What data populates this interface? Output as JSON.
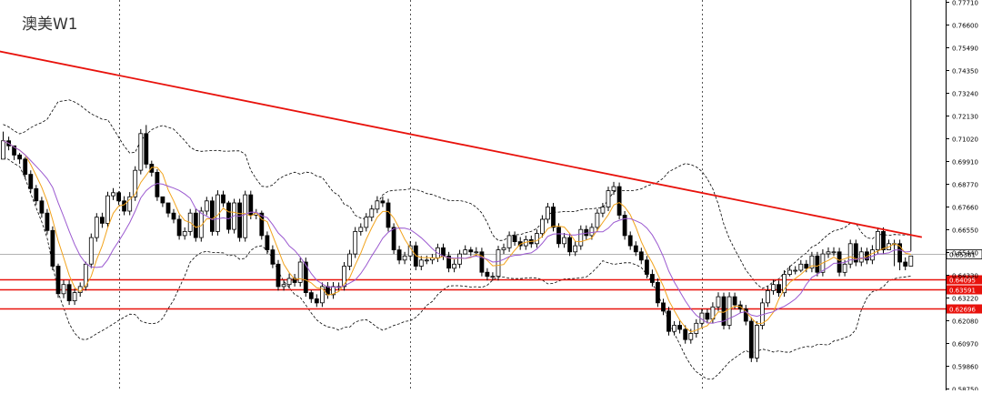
{
  "chart_data": {
    "type": "candlestick",
    "title": "澳美W1",
    "y_axis": {
      "position": "right",
      "ticks": [
        "0.77710",
        "0.76600",
        "0.75490",
        "0.74350",
        "0.73240",
        "0.72130",
        "0.71020",
        "0.69910",
        "0.68770",
        "0.67660",
        "0.66550",
        "0.65440",
        "0.64330",
        "0.63220",
        "0.62080",
        "0.60970",
        "0.59860",
        "0.58750"
      ],
      "tick_values": [
        0.7771,
        0.766,
        0.7549,
        0.7435,
        0.7324,
        0.7213,
        0.7102,
        0.6991,
        0.6877,
        0.6766,
        0.6655,
        0.6544,
        0.6433,
        0.6322,
        0.6208,
        0.6097,
        0.5986,
        0.5875
      ],
      "ylim": [
        0.5875,
        0.7771
      ]
    },
    "current_price": {
      "label": "0.65361",
      "value": 0.65361,
      "color": "#999999"
    },
    "horizontal_levels": [
      {
        "label": "0.64095",
        "value": 0.64095,
        "color": "#e8120c"
      },
      {
        "label": "0.63591",
        "value": 0.63591,
        "color": "#e8120c"
      },
      {
        "label": "0.62696",
        "value": 0.62696,
        "color": "#e8120c"
      }
    ],
    "trendline": {
      "color": "#e8120c",
      "from_bar": 0,
      "from_value": 0.7528,
      "to_bar": 167,
      "to_value": 0.6617
    },
    "period_separators_at_bar": [
      21,
      74,
      127
    ],
    "candles": {
      "start": 0.7,
      "closes": [
        0.709,
        0.7065,
        0.702,
        0.7,
        0.6925,
        0.6855,
        0.6795,
        0.6735,
        0.665,
        0.6475,
        0.634,
        0.6385,
        0.6305,
        0.6345,
        0.6375,
        0.6485,
        0.6615,
        0.6715,
        0.6685,
        0.682,
        0.6835,
        0.6795,
        0.6745,
        0.6815,
        0.6945,
        0.7125,
        0.6975,
        0.6935,
        0.6815,
        0.6785,
        0.6735,
        0.6705,
        0.6625,
        0.6645,
        0.6735,
        0.6615,
        0.6745,
        0.6795,
        0.6645,
        0.6825,
        0.6785,
        0.6655,
        0.6785,
        0.6615,
        0.6825,
        0.6725,
        0.6735,
        0.6625,
        0.6555,
        0.6485,
        0.6375,
        0.6385,
        0.6415,
        0.6395,
        0.6495,
        0.6345,
        0.6315,
        0.6295,
        0.6375,
        0.6335,
        0.6375,
        0.6375,
        0.6475,
        0.6535,
        0.6645,
        0.6665,
        0.6715,
        0.6755,
        0.6795,
        0.6785,
        0.6665,
        0.6555,
        0.6505,
        0.6525,
        0.6575,
        0.6475,
        0.6505,
        0.6505,
        0.6515,
        0.6565,
        0.6525,
        0.6465,
        0.6485,
        0.6535,
        0.6555,
        0.6545,
        0.6545,
        0.6445,
        0.6425,
        0.6425,
        0.6555,
        0.6565,
        0.6625,
        0.6595,
        0.6575,
        0.6605,
        0.6585,
        0.6635,
        0.6705,
        0.6765,
        0.6665,
        0.6585,
        0.6615,
        0.6545,
        0.6575,
        0.6655,
        0.6625,
        0.6665,
        0.6735,
        0.6765,
        0.6845,
        0.6865,
        0.6725,
        0.6625,
        0.6575,
        0.6545,
        0.6505,
        0.6435,
        0.6395,
        0.6295,
        0.6255,
        0.6155,
        0.6185,
        0.6165,
        0.6115,
        0.6145,
        0.6195,
        0.6245,
        0.6215,
        0.6275,
        0.6325,
        0.6185,
        0.6325,
        0.6285,
        0.6265,
        0.6205,
        0.6025,
        0.6185,
        0.6295,
        0.6355,
        0.6385,
        0.6345,
        0.6435,
        0.6455,
        0.6455,
        0.6485,
        0.6465,
        0.6525,
        0.6445,
        0.6535,
        0.6545,
        0.6545,
        0.6445,
        0.6485,
        0.6585,
        0.6495,
        0.6545,
        0.6505,
        0.6555,
        0.6645,
        0.6555,
        0.6585,
        0.6585,
        0.6495,
        0.6475,
        0.6525
      ],
      "highs": [
        0.7135,
        0.711,
        0.7063,
        0.703,
        0.701,
        0.6945,
        0.6873,
        0.6815,
        0.6755,
        0.667,
        0.6487,
        0.6407,
        0.6405,
        0.6365,
        0.6395,
        0.6497,
        0.6635,
        0.6735,
        0.6737,
        0.684,
        0.6858,
        0.6842,
        0.6818,
        0.6838,
        0.6965,
        0.7147,
        0.7167,
        0.6992,
        0.695,
        0.6805,
        0.6765,
        0.6755,
        0.6725,
        0.6665,
        0.6755,
        0.6757,
        0.6765,
        0.6815,
        0.6815,
        0.6847,
        0.6845,
        0.6795,
        0.6805,
        0.6805,
        0.6845,
        0.6845,
        0.6755,
        0.6747,
        0.6645,
        0.6577,
        0.6505,
        0.6408,
        0.6439,
        0.6437,
        0.6515,
        0.6517,
        0.6357,
        0.6337,
        0.6395,
        0.6397,
        0.6397,
        0.6395,
        0.6495,
        0.6555,
        0.6667,
        0.6685,
        0.6735,
        0.6775,
        0.6818,
        0.6817,
        0.6805,
        0.6685,
        0.6575,
        0.6545,
        0.6598,
        0.6595,
        0.6525,
        0.6527,
        0.6535,
        0.6585,
        0.6585,
        0.6545,
        0.6508,
        0.6555,
        0.6577,
        0.6569,
        0.6568,
        0.6565,
        0.6465,
        0.6445,
        0.6575,
        0.6585,
        0.6645,
        0.6645,
        0.6618,
        0.6625,
        0.6625,
        0.6655,
        0.6725,
        0.6785,
        0.6785,
        0.6685,
        0.6638,
        0.6635,
        0.6598,
        0.6675,
        0.6675,
        0.6685,
        0.6755,
        0.6785,
        0.6865,
        0.6888,
        0.6885,
        0.6745,
        0.6645,
        0.6597,
        0.6565,
        0.6525,
        0.6458,
        0.6415,
        0.6315,
        0.6275,
        0.6205,
        0.6207,
        0.6185,
        0.6167,
        0.6215,
        0.6265,
        0.6265,
        0.6298,
        0.6347,
        0.6345,
        0.6347,
        0.6345,
        0.6305,
        0.6285,
        0.6225,
        0.6205,
        0.6317,
        0.6375,
        0.6408,
        0.6405,
        0.6455,
        0.6477,
        0.6475,
        0.6505,
        0.6505,
        0.6545,
        0.6545,
        0.6558,
        0.6567,
        0.6568,
        0.6565,
        0.6505,
        0.6605,
        0.6605,
        0.6568,
        0.6565,
        0.6578,
        0.6665,
        0.6665,
        0.6605,
        0.6605,
        0.6605,
        0.6518,
        0.6549
      ],
      "lows": [
        0.7045,
        0.7043,
        0.6995,
        0.6976,
        0.6903,
        0.6835,
        0.6775,
        0.6713,
        0.663,
        0.6455,
        0.632,
        0.6318,
        0.6285,
        0.6285,
        0.6325,
        0.6355,
        0.6465,
        0.6595,
        0.6663,
        0.6665,
        0.6799,
        0.6775,
        0.6725,
        0.6725,
        0.6795,
        0.6925,
        0.6955,
        0.6915,
        0.6795,
        0.6765,
        0.6715,
        0.6685,
        0.6605,
        0.6605,
        0.6625,
        0.6595,
        0.6595,
        0.6725,
        0.6625,
        0.6625,
        0.6765,
        0.6635,
        0.6635,
        0.6595,
        0.6595,
        0.6705,
        0.6705,
        0.6605,
        0.6535,
        0.6465,
        0.6355,
        0.6355,
        0.6365,
        0.6375,
        0.6375,
        0.6325,
        0.6295,
        0.6275,
        0.6275,
        0.6315,
        0.6315,
        0.6355,
        0.6355,
        0.6455,
        0.6515,
        0.6625,
        0.6645,
        0.6695,
        0.6735,
        0.6765,
        0.6645,
        0.6535,
        0.6485,
        0.6485,
        0.6505,
        0.6455,
        0.6455,
        0.6485,
        0.6485,
        0.6495,
        0.6505,
        0.6445,
        0.6445,
        0.6465,
        0.6535,
        0.6525,
        0.6525,
        0.6425,
        0.6405,
        0.6405,
        0.6405,
        0.6535,
        0.6545,
        0.6575,
        0.6555,
        0.6555,
        0.6565,
        0.6565,
        0.6615,
        0.6685,
        0.6645,
        0.6565,
        0.6565,
        0.6525,
        0.6525,
        0.6555,
        0.6605,
        0.6605,
        0.6645,
        0.6715,
        0.6745,
        0.6825,
        0.6705,
        0.6605,
        0.6555,
        0.6525,
        0.6485,
        0.6415,
        0.6375,
        0.6275,
        0.6235,
        0.6135,
        0.6135,
        0.6145,
        0.6095,
        0.6095,
        0.6125,
        0.6175,
        0.6195,
        0.6195,
        0.6255,
        0.6165,
        0.6165,
        0.6265,
        0.6245,
        0.6185,
        0.6005,
        0.6005,
        0.6165,
        0.6275,
        0.6335,
        0.6325,
        0.6325,
        0.6425,
        0.6435,
        0.6445,
        0.6445,
        0.6445,
        0.6425,
        0.6425,
        0.6515,
        0.6525,
        0.6425,
        0.6425,
        0.6465,
        0.6475,
        0.6475,
        0.6485,
        0.6485,
        0.6535,
        0.6535,
        0.6565,
        0.6475,
        0.6455,
        0.6455
      ],
      "up_color": "#ffffff",
      "down_color": "#000000",
      "outline_color": "#000000"
    },
    "indicators": [
      {
        "type": "moving-average",
        "period": 5,
        "color": "#f2a31b"
      },
      {
        "type": "moving-average",
        "period": 10,
        "color": "#9b59d0"
      },
      {
        "type": "bollinger-bands",
        "period": 20,
        "color": "#000000",
        "style": "dashed"
      }
    ]
  }
}
